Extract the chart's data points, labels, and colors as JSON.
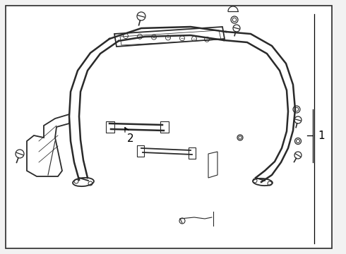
{
  "bg": "#f2f2f2",
  "white": "#ffffff",
  "lc": "#2a2a2a",
  "lc2": "#444444",
  "figsize": [
    4.9,
    3.6
  ],
  "dpi": 100,
  "label1": "1",
  "label2": "2"
}
